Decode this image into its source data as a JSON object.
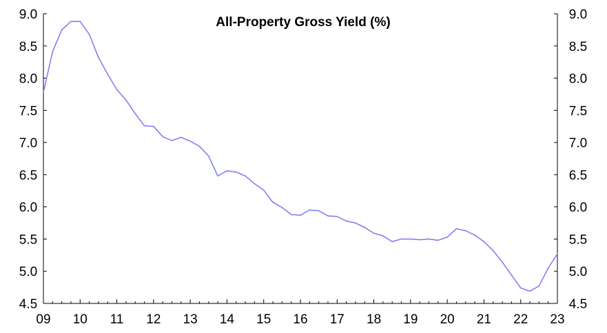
{
  "chart_data": {
    "type": "line",
    "title": "All-Property Gross Yield (%)",
    "xlabel": "",
    "ylabel": "",
    "ylim": [
      4.5,
      9.0
    ],
    "yticks": [
      "4.5",
      "5.0",
      "5.5",
      "6.0",
      "6.5",
      "7.0",
      "7.5",
      "8.0",
      "8.5",
      "9.0"
    ],
    "xticks": [
      "09",
      "10",
      "11",
      "12",
      "13",
      "14",
      "15",
      "16",
      "17",
      "18",
      "19",
      "20",
      "21",
      "22",
      "23"
    ],
    "grid": false,
    "line_color": "#8080f0",
    "series": [
      {
        "x": [
          2009.0,
          2009.25,
          2009.5,
          2009.75,
          2010.0,
          2010.25,
          2010.5,
          2010.75,
          2011.0,
          2011.25,
          2011.5,
          2011.75,
          2012.0,
          2012.25,
          2012.5,
          2012.75,
          2013.0,
          2013.25,
          2013.5,
          2013.75,
          2014.0,
          2014.25,
          2014.5,
          2014.75,
          2015.0,
          2015.25,
          2015.5,
          2015.75,
          2016.0,
          2016.25,
          2016.5,
          2016.75,
          2017.0,
          2017.25,
          2017.5,
          2017.75,
          2018.0,
          2018.25,
          2018.5,
          2018.75,
          2019.0,
          2019.25,
          2019.5,
          2019.75,
          2020.0,
          2020.25,
          2020.5,
          2020.75,
          2021.0,
          2021.25,
          2021.5,
          2021.75,
          2022.0,
          2022.25,
          2022.5,
          2022.75,
          2023.0
        ],
        "values": [
          7.78,
          8.41,
          8.75,
          8.88,
          8.88,
          8.68,
          8.32,
          8.06,
          7.82,
          7.66,
          7.45,
          7.26,
          7.25,
          7.09,
          7.03,
          7.08,
          7.02,
          6.94,
          6.79,
          6.48,
          6.56,
          6.54,
          6.48,
          6.36,
          6.26,
          6.07,
          5.99,
          5.88,
          5.87,
          5.95,
          5.94,
          5.86,
          5.85,
          5.78,
          5.75,
          5.68,
          5.59,
          5.55,
          5.46,
          5.5,
          5.5,
          5.49,
          5.5,
          5.48,
          5.53,
          5.66,
          5.63,
          5.56,
          5.46,
          5.32,
          5.14,
          4.94,
          4.74,
          4.69,
          4.77,
          5.05,
          5.27
        ]
      }
    ]
  }
}
